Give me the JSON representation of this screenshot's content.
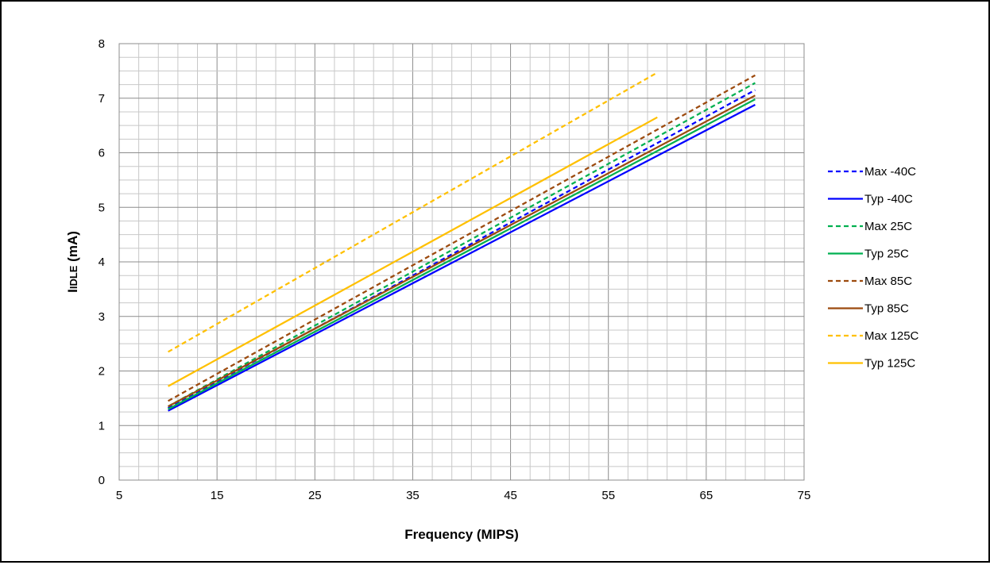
{
  "chart_data": {
    "type": "line",
    "title": "",
    "xlabel": "Frequency (MIPS)",
    "ylabel_parts": {
      "main": "I",
      "sub": "IDLE",
      "unit": " (mA)"
    },
    "xlim": [
      5,
      75
    ],
    "ylim": [
      0,
      8
    ],
    "xticks": [
      5,
      15,
      25,
      35,
      45,
      55,
      65,
      75
    ],
    "yticks": [
      0,
      1,
      2,
      3,
      4,
      5,
      6,
      7,
      8
    ],
    "x_minor_step": 2,
    "y_minor_step": 0.25,
    "grid": true,
    "legend_position": "right",
    "series": [
      {
        "name": "Max -40C",
        "color": "#0000FF",
        "dashed": true,
        "x": [
          10,
          70
        ],
        "y": [
          1.32,
          7.15
        ]
      },
      {
        "name": "Typ -40C",
        "color": "#0000FF",
        "dashed": false,
        "x": [
          10,
          70
        ],
        "y": [
          1.27,
          6.88
        ]
      },
      {
        "name": "Max 25C",
        "color": "#00B050",
        "dashed": true,
        "x": [
          10,
          70
        ],
        "y": [
          1.35,
          7.28
        ]
      },
      {
        "name": "Typ 25C",
        "color": "#00B050",
        "dashed": false,
        "x": [
          10,
          70
        ],
        "y": [
          1.3,
          6.98
        ]
      },
      {
        "name": "Max 85C",
        "color": "#9C4A0E",
        "dashed": true,
        "x": [
          10,
          70
        ],
        "y": [
          1.45,
          7.42
        ]
      },
      {
        "name": "Typ 85C",
        "color": "#9C4A0E",
        "dashed": false,
        "x": [
          10,
          70
        ],
        "y": [
          1.35,
          7.05
        ]
      },
      {
        "name": "Max 125C",
        "color": "#FFC000",
        "dashed": true,
        "x": [
          10,
          60
        ],
        "y": [
          2.35,
          7.47
        ]
      },
      {
        "name": "Typ 125C",
        "color": "#FFC000",
        "dashed": false,
        "x": [
          10,
          60
        ],
        "y": [
          1.72,
          6.65
        ]
      }
    ]
  }
}
